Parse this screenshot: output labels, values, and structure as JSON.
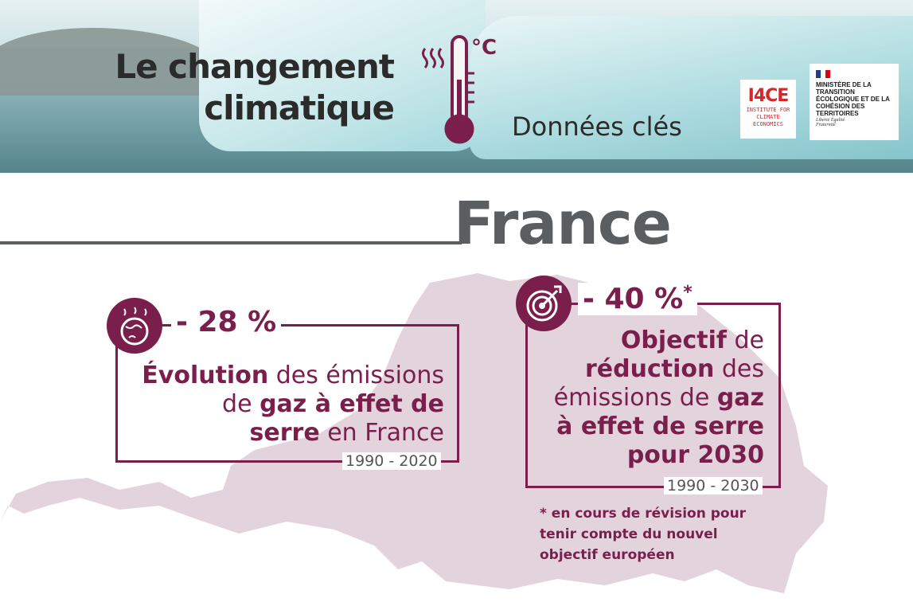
{
  "header": {
    "title_line1": "Le changement",
    "title_line2": "climatique",
    "thermometer_unit": "°C",
    "subtitle": "Données clés",
    "logos": {
      "i4ce_main": "I4CE",
      "i4ce_sub": "INSTITUTE FOR CLIMATE ECONOMICS",
      "ministry": "MINISTÈRE DE LA TRANSITION ÉCOLOGIQUE ET DE LA COHÉSION DES TERRITOIRES",
      "motto": "Liberté Égalité Fraternité"
    }
  },
  "country": "France",
  "stats": [
    {
      "value": "- 28 %",
      "icon": "globe-heat-icon",
      "desc_bold1": "Évolution",
      "desc_plain1": " des émissions",
      "desc_plain2": "de ",
      "desc_bold2": "gaz à effet de",
      "desc_bold3": "serre",
      "desc_plain3": " en France",
      "period": "1990 - 2020"
    },
    {
      "value": "- 40 %",
      "asterisk": "*",
      "icon": "target-icon",
      "desc_bold1": "Objectif",
      "desc_plain1": " de",
      "desc_bold2": "réduction",
      "desc_plain2": " des",
      "desc_plain3": "émissions de ",
      "desc_bold3": "gaz",
      "desc_bold4": "à effet de serre",
      "desc_bold5": "pour 2030",
      "period": "1990 - 2030"
    }
  ],
  "footnote": "* en cours de révision pour tenir compte du nouvel objectif européen",
  "colors": {
    "accent": "#7a1f4c",
    "gray": "#5b5e60",
    "map": "#e3d3dd"
  }
}
